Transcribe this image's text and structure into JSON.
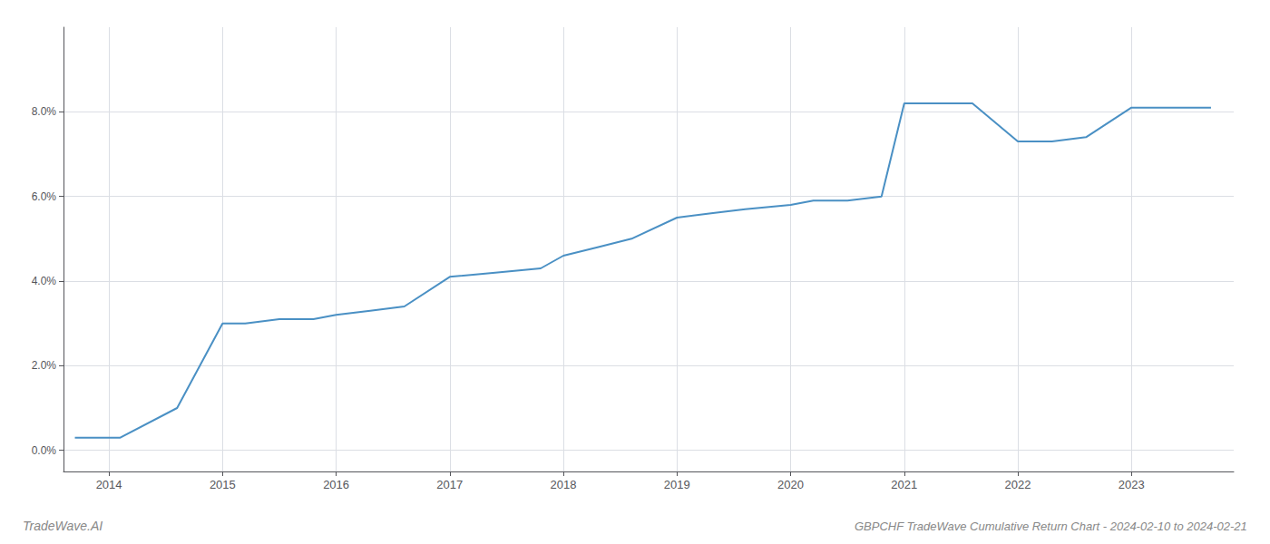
{
  "chart_data": {
    "type": "line",
    "title": "GBPCHF TradeWave Cumulative Return Chart - 2024-02-10 to 2024-02-21",
    "annotations": [
      "TradeWave.AI"
    ],
    "x": [
      2013.7,
      2014.1,
      2014.6,
      2015.0,
      2015.2,
      2015.5,
      2015.8,
      2016.0,
      2016.3,
      2016.6,
      2017.0,
      2017.4,
      2017.8,
      2018.0,
      2018.3,
      2018.6,
      2019.0,
      2019.3,
      2019.6,
      2020.0,
      2020.2,
      2020.5,
      2020.8,
      2021.0,
      2021.3,
      2021.6,
      2022.0,
      2022.3,
      2022.6,
      2023.0,
      2023.3,
      2023.7
    ],
    "values": [
      0.003,
      0.003,
      0.01,
      0.03,
      0.03,
      0.031,
      0.031,
      0.032,
      0.033,
      0.034,
      0.041,
      0.042,
      0.043,
      0.046,
      0.048,
      0.05,
      0.055,
      0.056,
      0.057,
      0.058,
      0.059,
      0.059,
      0.06,
      0.082,
      0.082,
      0.082,
      0.073,
      0.073,
      0.074,
      0.081,
      0.081,
      0.081
    ],
    "color": "#4a90c4",
    "xlim": [
      2013.6,
      2023.9
    ],
    "xticks": [
      2014,
      2015,
      2016,
      2017,
      2018,
      2019,
      2020,
      2021,
      2022,
      2023
    ],
    "ylim": [
      -0.005,
      0.1
    ],
    "yticks": [
      {
        "value": 0.0,
        "label": "0.0%"
      },
      {
        "value": 0.02,
        "label": "2.0%"
      },
      {
        "value": 0.04,
        "label": "4.0%"
      },
      {
        "value": 0.06,
        "label": "6.0%"
      },
      {
        "value": 0.08,
        "label": "8.0%"
      }
    ],
    "grid": true
  }
}
